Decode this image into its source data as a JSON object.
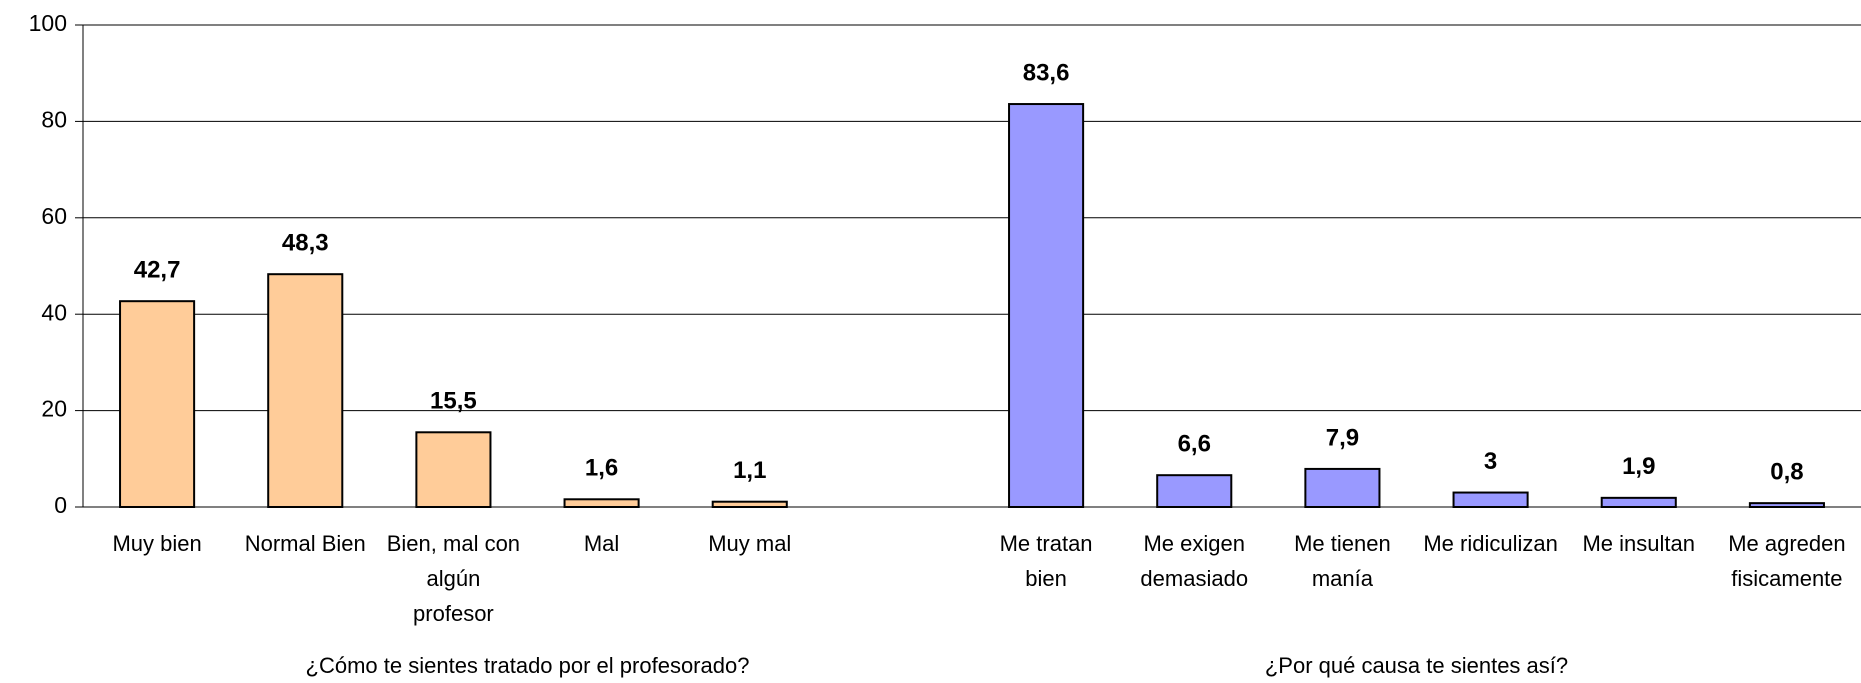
{
  "chart_data": {
    "type": "bar",
    "ylim": [
      0,
      100
    ],
    "yticks": [
      0,
      20,
      40,
      60,
      80,
      100
    ],
    "grid": true,
    "groups": [
      {
        "label": "¿Cómo te sientes tratado por el profesorado?",
        "color": "#FFCC99",
        "categories": [
          "Muy bien",
          "Normal Bien",
          "Bien, mal con algún profesor",
          "Mal",
          "Muy mal"
        ],
        "values": [
          42.7,
          48.3,
          15.5,
          1.6,
          1.1
        ],
        "value_labels": [
          "42,7",
          "48,3",
          "15,5",
          "1,6",
          "1,1"
        ]
      },
      {
        "label": "¿Por qué causa te sientes así?",
        "color": "#9999FF",
        "categories": [
          "Me tratan bien",
          "Me exigen demasiado",
          "Me tienen manía",
          "Me ridiculizan",
          "Me insultan",
          "Me agreden fisicamente"
        ],
        "values": [
          83.6,
          6.6,
          7.9,
          3,
          1.9,
          0.8
        ],
        "value_labels": [
          "83,6",
          "6,6",
          "7,9",
          "3",
          "1,9",
          "0,8"
        ]
      }
    ]
  }
}
